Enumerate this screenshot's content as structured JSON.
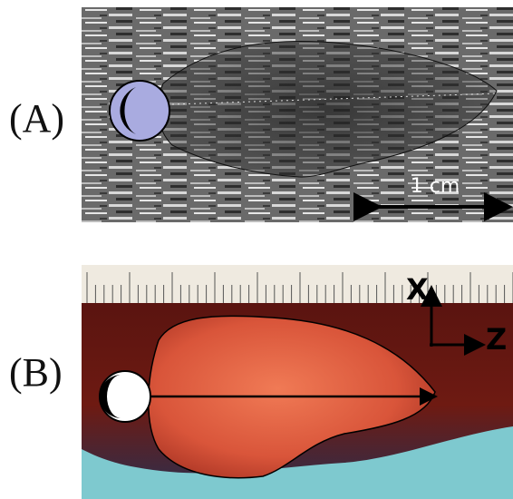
{
  "panels": [
    {
      "label": "(A)",
      "scale_bar": "1 cm"
    },
    {
      "label": "(B)",
      "axes": {
        "x": "X",
        "z": "Z"
      }
    }
  ]
}
